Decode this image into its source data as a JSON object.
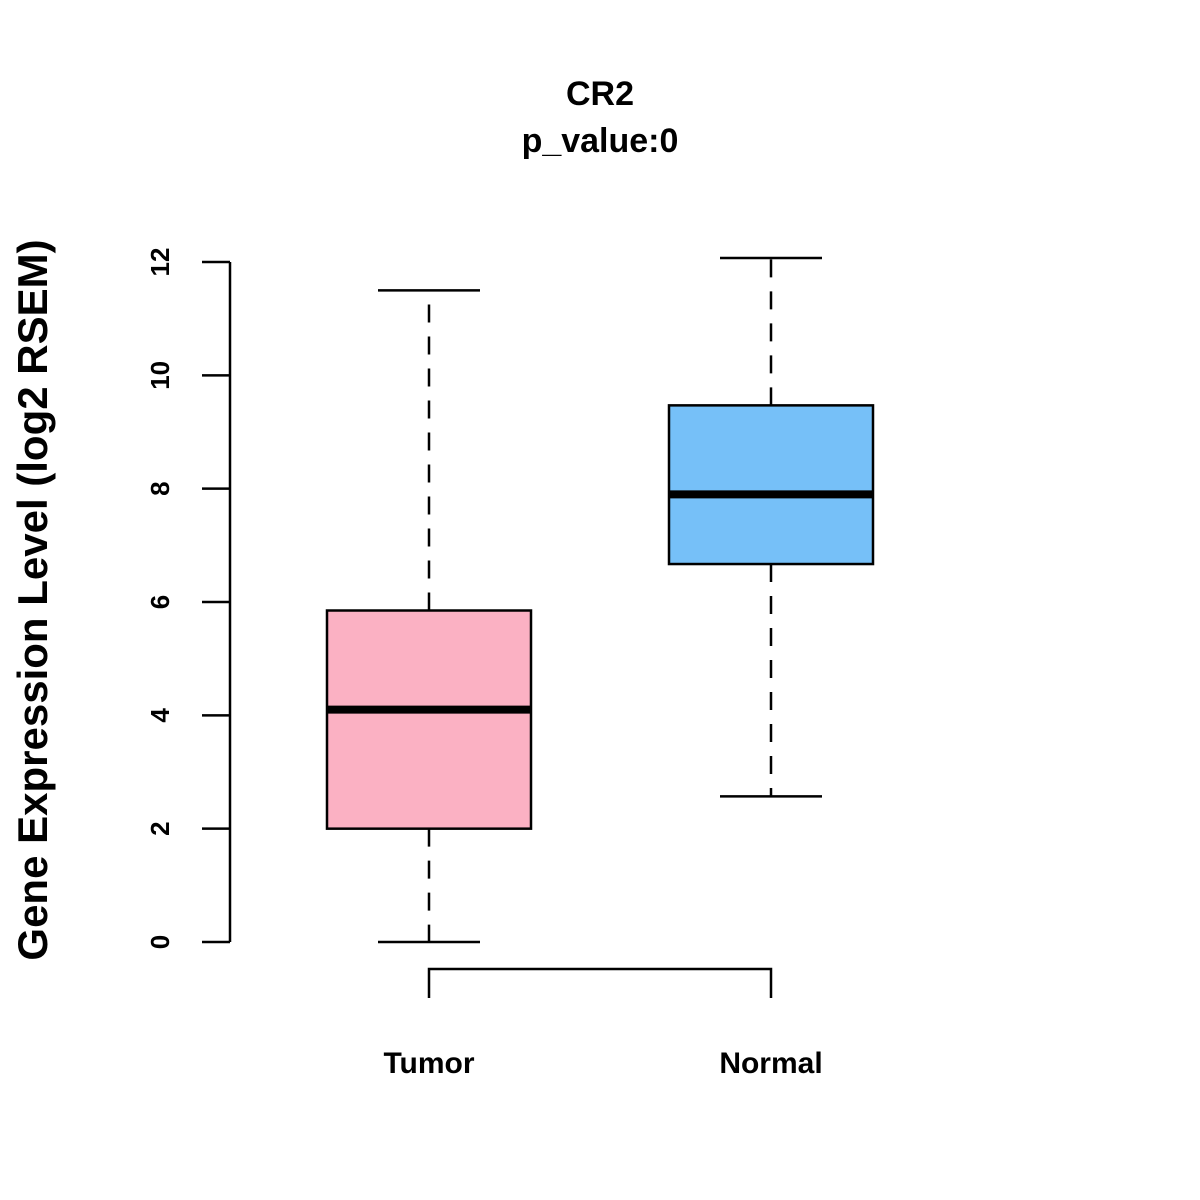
{
  "chart_data": {
    "type": "boxplot",
    "title": "CR2",
    "subtitle": "p_value:0",
    "xlabel": "",
    "ylabel": "Gene Expression Level (log2 RSEM)",
    "ylim": [
      0,
      12
    ],
    "yticks": [
      "0",
      "2",
      "4",
      "6",
      "8",
      "10",
      "12"
    ],
    "grid": false,
    "categories": [
      "Tumor",
      "Normal"
    ],
    "series": [
      {
        "name": "Tumor",
        "color": "#FBB1C3",
        "whisker_low": 0.0,
        "q1": 2.0,
        "median": 4.1,
        "q3": 5.85,
        "whisker_high": 11.5
      },
      {
        "name": "Normal",
        "color": "#76C0F8",
        "whisker_low": 2.57,
        "q1": 6.67,
        "median": 7.9,
        "q3": 9.47,
        "whisker_high": 12.07
      }
    ],
    "comparison_bracket": [
      "Tumor",
      "Normal"
    ]
  }
}
